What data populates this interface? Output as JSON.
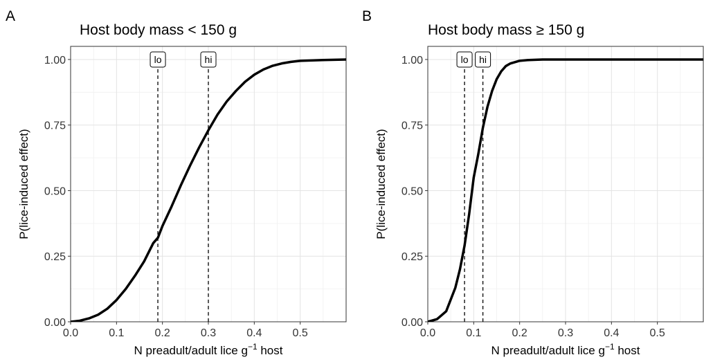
{
  "chart_data": [
    {
      "panel": "A",
      "type": "line",
      "title": "Host body mass < 150 g",
      "xlabel": "N preadult/adult lice g",
      "xlabel_sup": "−1",
      "xlabel_suffix": " host",
      "ylabel": "P(lice-induced effect)",
      "xlim": [
        0,
        0.6
      ],
      "ylim": [
        0,
        1.05
      ],
      "xticks": [
        0.0,
        0.1,
        0.2,
        0.3,
        0.4,
        0.5
      ],
      "xtick_labels": [
        "0.0",
        "0.1",
        "0.2",
        "0.3",
        "0.4",
        "0.5"
      ],
      "yticks": [
        0.0,
        0.25,
        0.5,
        0.75,
        1.0
      ],
      "ytick_labels": [
        "0.00",
        "0.25",
        "0.50",
        "0.75",
        "1.00"
      ],
      "grid": true,
      "series": [
        {
          "x": [
            0.0,
            0.02,
            0.04,
            0.06,
            0.08,
            0.1,
            0.12,
            0.14,
            0.16,
            0.18,
            0.19,
            0.2,
            0.22,
            0.24,
            0.26,
            0.28,
            0.3,
            0.32,
            0.34,
            0.36,
            0.38,
            0.4,
            0.42,
            0.44,
            0.46,
            0.48,
            0.5,
            0.55,
            0.6
          ],
          "y": [
            0.0,
            0.004,
            0.013,
            0.027,
            0.05,
            0.083,
            0.125,
            0.175,
            0.23,
            0.3,
            0.32,
            0.365,
            0.44,
            0.52,
            0.595,
            0.665,
            0.73,
            0.79,
            0.84,
            0.88,
            0.915,
            0.942,
            0.962,
            0.976,
            0.985,
            0.991,
            0.995,
            0.998,
            1.0
          ]
        }
      ],
      "reference_lines": [
        {
          "label": "lo",
          "x": 0.19
        },
        {
          "label": "hi",
          "x": 0.3
        }
      ]
    },
    {
      "panel": "B",
      "type": "line",
      "title": "Host body mass ≥ 150 g",
      "xlabel": "N preadult/adult lice g",
      "xlabel_sup": "−1",
      "xlabel_suffix": " host",
      "ylabel": "P(lice-induced effect)",
      "xlim": [
        0,
        0.6
      ],
      "ylim": [
        0,
        1.05
      ],
      "xticks": [
        0.0,
        0.1,
        0.2,
        0.3,
        0.4,
        0.5
      ],
      "xtick_labels": [
        "0.0",
        "0.1",
        "0.2",
        "0.3",
        "0.4",
        "0.5"
      ],
      "yticks": [
        0.0,
        0.25,
        0.5,
        0.75,
        1.0
      ],
      "ytick_labels": [
        "0.00",
        "0.25",
        "0.50",
        "0.75",
        "1.00"
      ],
      "grid": true,
      "series": [
        {
          "x": [
            0.0,
            0.02,
            0.04,
            0.06,
            0.07,
            0.08,
            0.09,
            0.1,
            0.11,
            0.12,
            0.13,
            0.14,
            0.15,
            0.16,
            0.17,
            0.18,
            0.2,
            0.22,
            0.25,
            0.3,
            0.4,
            0.5,
            0.6
          ],
          "y": [
            0.0,
            0.01,
            0.04,
            0.13,
            0.2,
            0.29,
            0.41,
            0.55,
            0.64,
            0.74,
            0.82,
            0.88,
            0.925,
            0.955,
            0.975,
            0.985,
            0.995,
            0.998,
            1.0,
            1.0,
            1.0,
            1.0,
            1.0
          ]
        }
      ],
      "reference_lines": [
        {
          "label": "lo",
          "x": 0.08
        },
        {
          "label": "hi",
          "x": 0.12
        }
      ]
    }
  ]
}
